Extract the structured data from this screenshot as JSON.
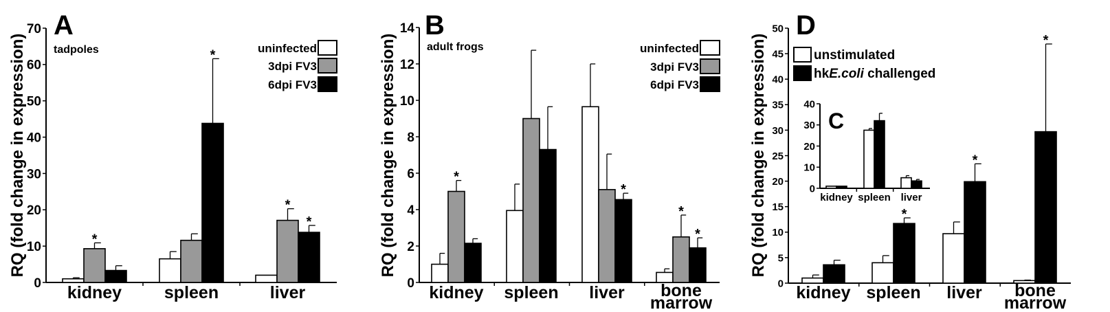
{
  "colors": {
    "uninfected": "#ffffff",
    "3dpi": "#999999",
    "6dpi": "#000000",
    "unstimulated": "#ffffff",
    "challenged": "#000000"
  },
  "chart_data": [
    {
      "id": "A",
      "type": "bar",
      "panel_label": "A",
      "subtitle": "tadpoles",
      "ylabel": "RQ (fold change in expression)",
      "ylim": [
        0,
        70
      ],
      "ytick_step": 10,
      "categories": [
        "kidney",
        "spleen",
        "liver"
      ],
      "series": [
        {
          "name": "uninfected",
          "color_key": "uninfected",
          "values": [
            1.0,
            6.5,
            2.0
          ],
          "errors": [
            0.3,
            2.0,
            0
          ],
          "significant": [
            false,
            false,
            false
          ]
        },
        {
          "name": "3dpi FV3",
          "color_key": "3dpi",
          "values": [
            9.3,
            11.6,
            17.1
          ],
          "errors": [
            1.6,
            1.8,
            3.2
          ],
          "significant": [
            true,
            false,
            true
          ]
        },
        {
          "name": "6dpi FV3",
          "color_key": "6dpi",
          "values": [
            3.3,
            43.8,
            13.8
          ],
          "errors": [
            1.3,
            17.8,
            1.9
          ],
          "significant": [
            false,
            true,
            true
          ]
        }
      ],
      "legend_position": "top-right"
    },
    {
      "id": "B",
      "type": "bar",
      "panel_label": "B",
      "subtitle": "adult frogs",
      "ylabel": "RQ (fold change in expression)",
      "ylim": [
        0,
        14
      ],
      "ytick_step": 2,
      "categories": [
        "kidney",
        "spleen",
        "liver",
        "bone marrow"
      ],
      "series": [
        {
          "name": "uninfected",
          "color_key": "uninfected",
          "values": [
            1.0,
            3.95,
            9.65,
            0.55
          ],
          "errors": [
            0.6,
            1.45,
            2.35,
            0.2
          ],
          "significant": [
            false,
            false,
            false,
            false
          ]
        },
        {
          "name": "3dpi FV3",
          "color_key": "3dpi",
          "values": [
            5.0,
            9.0,
            5.1,
            2.5
          ],
          "errors": [
            0.6,
            3.75,
            1.95,
            1.2
          ],
          "significant": [
            true,
            false,
            false,
            true
          ]
        },
        {
          "name": "6dpi FV3",
          "color_key": "6dpi",
          "values": [
            2.15,
            7.3,
            4.55,
            1.9
          ],
          "errors": [
            0.25,
            2.35,
            0.35,
            0.55
          ],
          "significant": [
            false,
            false,
            true,
            true
          ]
        }
      ],
      "legend_position": "top-right"
    },
    {
      "id": "D",
      "type": "bar",
      "panel_label": "D",
      "subtitle": "",
      "ylabel": "RQ (fold change in expression)",
      "ylim": [
        0,
        50
      ],
      "ytick_step": 5,
      "categories": [
        "kidney",
        "spleen",
        "liver",
        "bone marrow"
      ],
      "series": [
        {
          "name": "unstimulated",
          "color_key": "unstimulated",
          "values": [
            1.0,
            4.0,
            9.7,
            0.5
          ],
          "errors": [
            0.6,
            1.4,
            2.3,
            0.1
          ],
          "significant": [
            false,
            false,
            false,
            false
          ]
        },
        {
          "name": "hkE.coli challenged",
          "name_prefix": "hk",
          "name_italic": "E.coli",
          "name_suffix": " challenged",
          "color_key": "challenged",
          "values": [
            3.6,
            11.7,
            19.9,
            29.7
          ],
          "errors": [
            0.9,
            1.1,
            3.5,
            17.2
          ],
          "significant": [
            false,
            true,
            true,
            true
          ]
        }
      ],
      "legend_position": "top-left"
    },
    {
      "id": "C",
      "type": "bar",
      "panel_label": "C",
      "subtitle": "",
      "inset_of": "D",
      "ylabel": "",
      "ylim": [
        0,
        40
      ],
      "ytick_step": 10,
      "categories": [
        "kidney",
        "spleen",
        "liver"
      ],
      "series": [
        {
          "name": "unstimulated",
          "color_key": "unstimulated",
          "values": [
            1.0,
            27.5,
            5.0
          ],
          "errors": [
            0,
            0.8,
            1.0
          ],
          "significant": [
            false,
            false,
            false
          ]
        },
        {
          "name": "hkE.coli challenged",
          "color_key": "challenged",
          "values": [
            1.0,
            32.0,
            3.5
          ],
          "errors": [
            0,
            3.5,
            0.7
          ],
          "significant": [
            false,
            false,
            false
          ]
        }
      ]
    }
  ],
  "significance_marker": "*"
}
